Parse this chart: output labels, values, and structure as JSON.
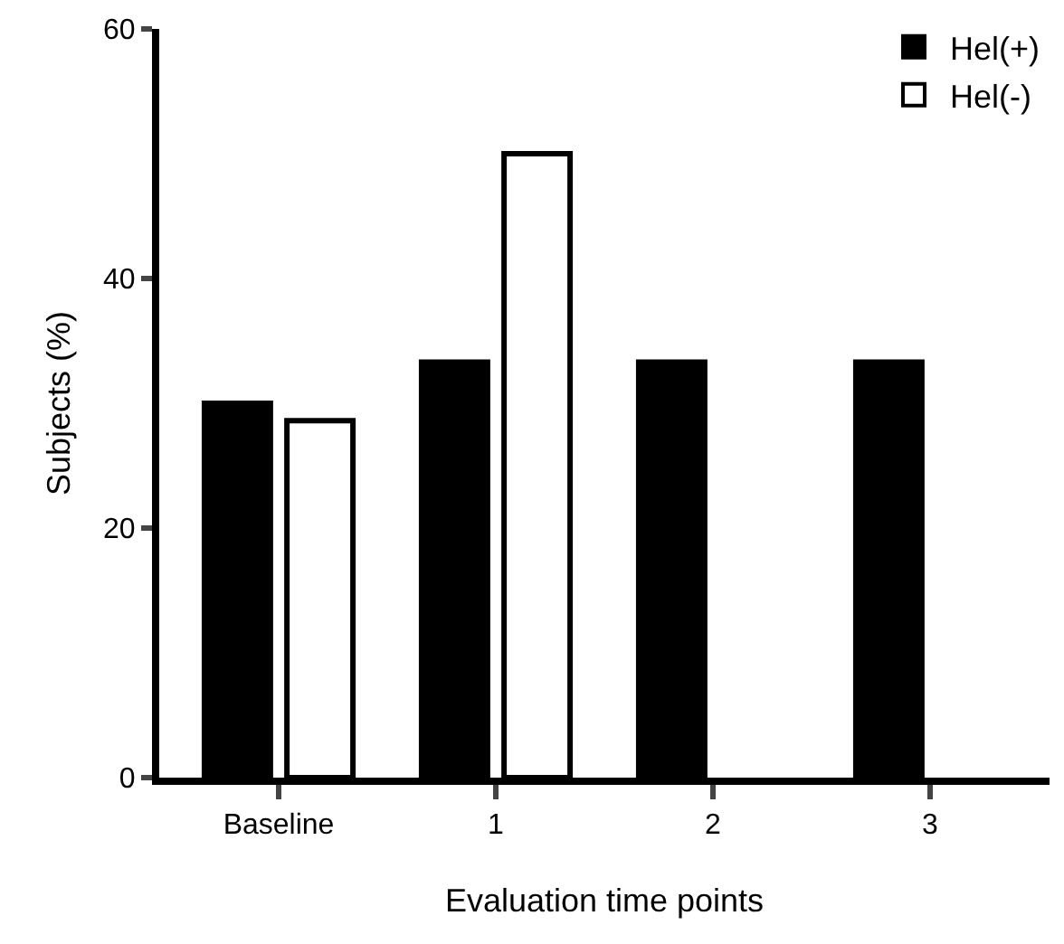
{
  "chart_data": {
    "type": "bar",
    "xlabel": "Evaluation time points",
    "ylabel": "Subjects (%)",
    "categories": [
      "Baseline",
      "1",
      "2",
      "3"
    ],
    "series": [
      {
        "name": "Hel(+)",
        "color": "#000000",
        "values": [
          30,
          33.3,
          33.3,
          33.3
        ]
      },
      {
        "name": "Hel(-)",
        "color": "#ffffff",
        "values": [
          28.6,
          50,
          0,
          0
        ]
      }
    ],
    "ylim": [
      0,
      60
    ],
    "yticks": [
      0,
      20,
      40,
      60
    ],
    "legend": "top right"
  }
}
